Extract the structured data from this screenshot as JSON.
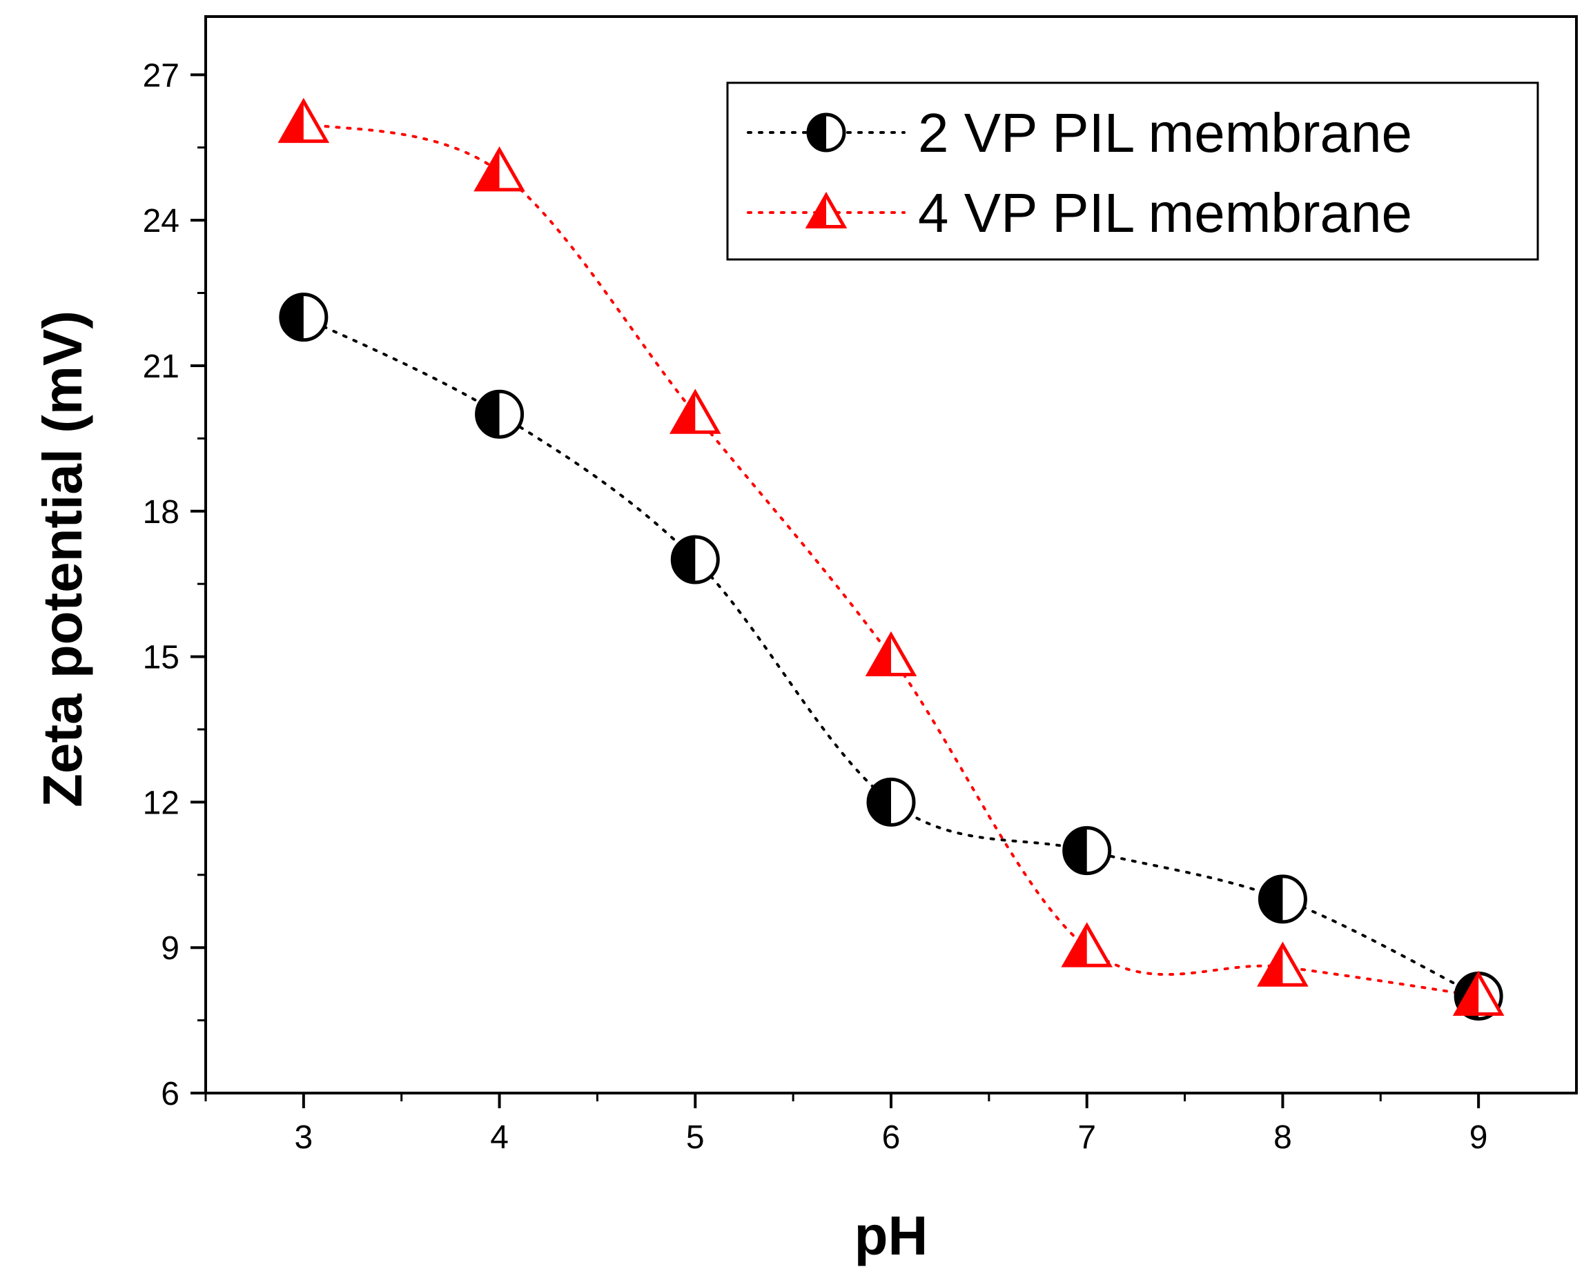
{
  "chart_data": {
    "type": "scatter",
    "xlabel": "pH",
    "ylabel": "Zeta potential (mV)",
    "xlim": [
      2.5,
      9.5
    ],
    "ylim": [
      6,
      28.2
    ],
    "xticks": [
      3,
      4,
      5,
      6,
      7,
      8,
      9
    ],
    "yticks": [
      6,
      9,
      12,
      15,
      18,
      21,
      24,
      27
    ],
    "legend_position": "top-right",
    "series": [
      {
        "name": "2 VP PIL membrane",
        "marker": "half-filled-circle",
        "color": "#000000",
        "line": "dotted",
        "x": [
          3,
          4,
          5,
          6,
          7,
          8,
          9
        ],
        "y": [
          22,
          20,
          17,
          12,
          11,
          10,
          8
        ]
      },
      {
        "name": "4 VP PIL membrane",
        "marker": "half-filled-triangle",
        "color": "#ff0000",
        "line": "dotted",
        "x": [
          3,
          4,
          5,
          6,
          7,
          8,
          9
        ],
        "y": [
          26,
          25,
          20,
          15,
          9,
          8.6,
          8
        ]
      }
    ]
  }
}
